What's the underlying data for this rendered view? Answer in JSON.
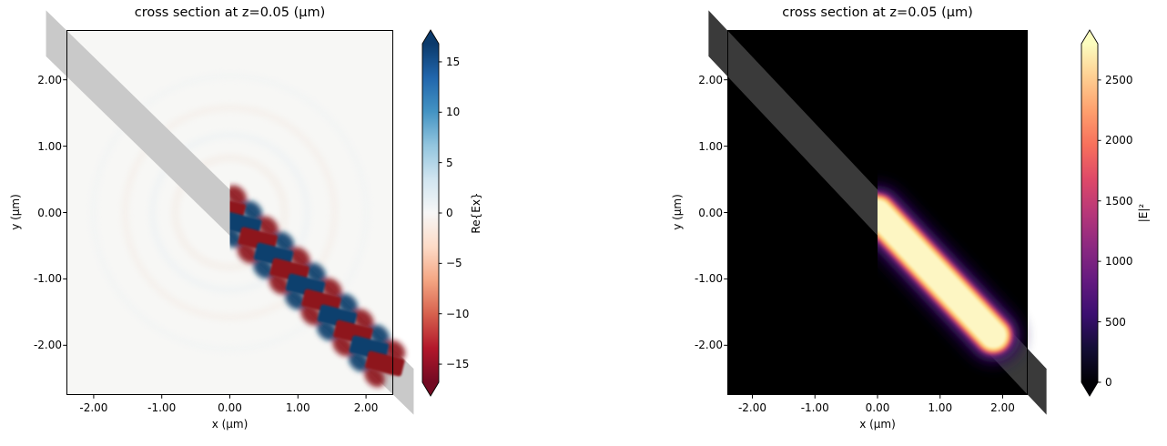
{
  "figure": {
    "background": "#ffffff"
  },
  "panels": [
    {
      "title": "cross section at z=0.05 (μm)",
      "xlabel": "x (μm)",
      "ylabel": "y (μm)",
      "x_tick_labels": [
        "-2.00",
        "-1.00",
        "0.00",
        "1.00",
        "2.00"
      ],
      "y_tick_labels": [
        "2.00",
        "1.00",
        "0.00",
        "-1.00",
        "-2.00"
      ],
      "colorbar": {
        "label": "Re{Ex}",
        "tick_labels": [
          "15",
          "10",
          "5",
          "0",
          "−5",
          "−10",
          "−15"
        ]
      }
    },
    {
      "title": "cross section at z=0.05 (μm)",
      "xlabel": "x (μm)",
      "ylabel": "y (μm)",
      "x_tick_labels": [
        "-2.00",
        "-1.00",
        "0.00",
        "1.00",
        "2.00"
      ],
      "y_tick_labels": [
        "2.00",
        "1.00",
        "0.00",
        "-1.00",
        "-2.00"
      ],
      "colorbar": {
        "label": "|E|²",
        "tick_labels": [
          "2500",
          "2000",
          "1500",
          "1000",
          "500",
          "0"
        ]
      }
    }
  ],
  "chart_data": [
    {
      "type": "heatmap",
      "title": "cross section at z=0.05 (μm)",
      "xlabel": "x (μm)",
      "ylabel": "y (μm)",
      "quantity": "Re{Ex}",
      "xlim": [
        -2.4,
        2.4
      ],
      "ylim": [
        -2.75,
        2.75
      ],
      "x_ticks": [
        -2.0,
        -1.0,
        0.0,
        1.0,
        2.0
      ],
      "y_ticks": [
        2.0,
        1.0,
        0.0,
        -1.0,
        -2.0
      ],
      "colormap": "RdBu",
      "background_color": "#f7f7f5",
      "colorbar": {
        "ticks": [
          15,
          10,
          5,
          0,
          -5,
          -10,
          -15
        ],
        "vmin": -16.8,
        "vmax": 16.8,
        "extend": "both"
      },
      "waveguide": {
        "description": "dielectric stripe rotated -45deg through origin",
        "center_intercept": 0.0,
        "width_um": 0.49,
        "color": "#c9c9c9"
      },
      "mode_field": {
        "description": "guided mode launched at x=0 propagating down-right along waveguide, alternating +/- lobes",
        "start_t_um": 0.25,
        "dt_um": 0.33,
        "num_lobes": 10,
        "lobe_len_um": 0.55,
        "lobe_h_um": 0.27,
        "lobe_tilt_deg": 14,
        "positive_color": "#10406e",
        "negative_color": "#8e161c",
        "blob_offset_um": [
          0.15,
          0.2
        ],
        "trailing_blobs": [
          {
            "x": 2.17,
            "y": -2.12,
            "color": "#10406e",
            "opacity": 0.8
          },
          {
            "x": 2.33,
            "y": -2.3,
            "color": "#8e161c",
            "opacity": 0.45
          }
        ]
      }
    },
    {
      "type": "heatmap",
      "title": "cross section at z=0.05 (μm)",
      "xlabel": "x (μm)",
      "ylabel": "y (μm)",
      "quantity": "|E|²",
      "xlim": [
        -2.4,
        2.4
      ],
      "ylim": [
        -2.75,
        2.75
      ],
      "x_ticks": [
        -2.0,
        -1.0,
        0.0,
        1.0,
        2.0
      ],
      "y_ticks": [
        2.0,
        1.0,
        0.0,
        -1.0,
        -2.0
      ],
      "colormap": "magma",
      "background_color": "#000000",
      "colorbar": {
        "ticks": [
          2500,
          2000,
          1500,
          1000,
          500,
          0
        ],
        "vmin": 0,
        "vmax": 2800,
        "extend": "both"
      },
      "waveguide": {
        "description": "dielectric stripe rotated -45deg through origin",
        "center_intercept": 0.0,
        "width_um": 0.49,
        "color": "#3a3a3a"
      },
      "beam": {
        "description": "bright guided intensity along waveguide, flat start at x=0, rounded fading end",
        "from": [
          0.0,
          0.0
        ],
        "to": [
          1.85,
          -1.85
        ],
        "layers": [
          [
            60,
            "#2c115f",
            9,
            0.95
          ],
          [
            48,
            "#71207f",
            5,
            1
          ],
          [
            42,
            "#c73e72",
            2.5,
            1
          ],
          [
            38,
            "#fa8657",
            2,
            1
          ],
          [
            34,
            "#fdd884",
            1.6,
            1
          ],
          [
            28,
            "#fdf6c3",
            1.3,
            1
          ]
        ]
      }
    }
  ],
  "colormap_stops": {
    "RdBu_top_to_bottom": [
      "#0b3a6b",
      "#2166ac",
      "#4393c3",
      "#92c5de",
      "#d1e5f0",
      "#f7f7f7",
      "#fddbc7",
      "#f4a582",
      "#d6604d",
      "#b2182b",
      "#720a22"
    ],
    "magma_bottom_to_top": [
      "#000004",
      "#140e36",
      "#3b0f70",
      "#641a80",
      "#8c2981",
      "#b73779",
      "#de4968",
      "#f7705c",
      "#fe9f6d",
      "#fece91",
      "#fcfdbf"
    ]
  }
}
